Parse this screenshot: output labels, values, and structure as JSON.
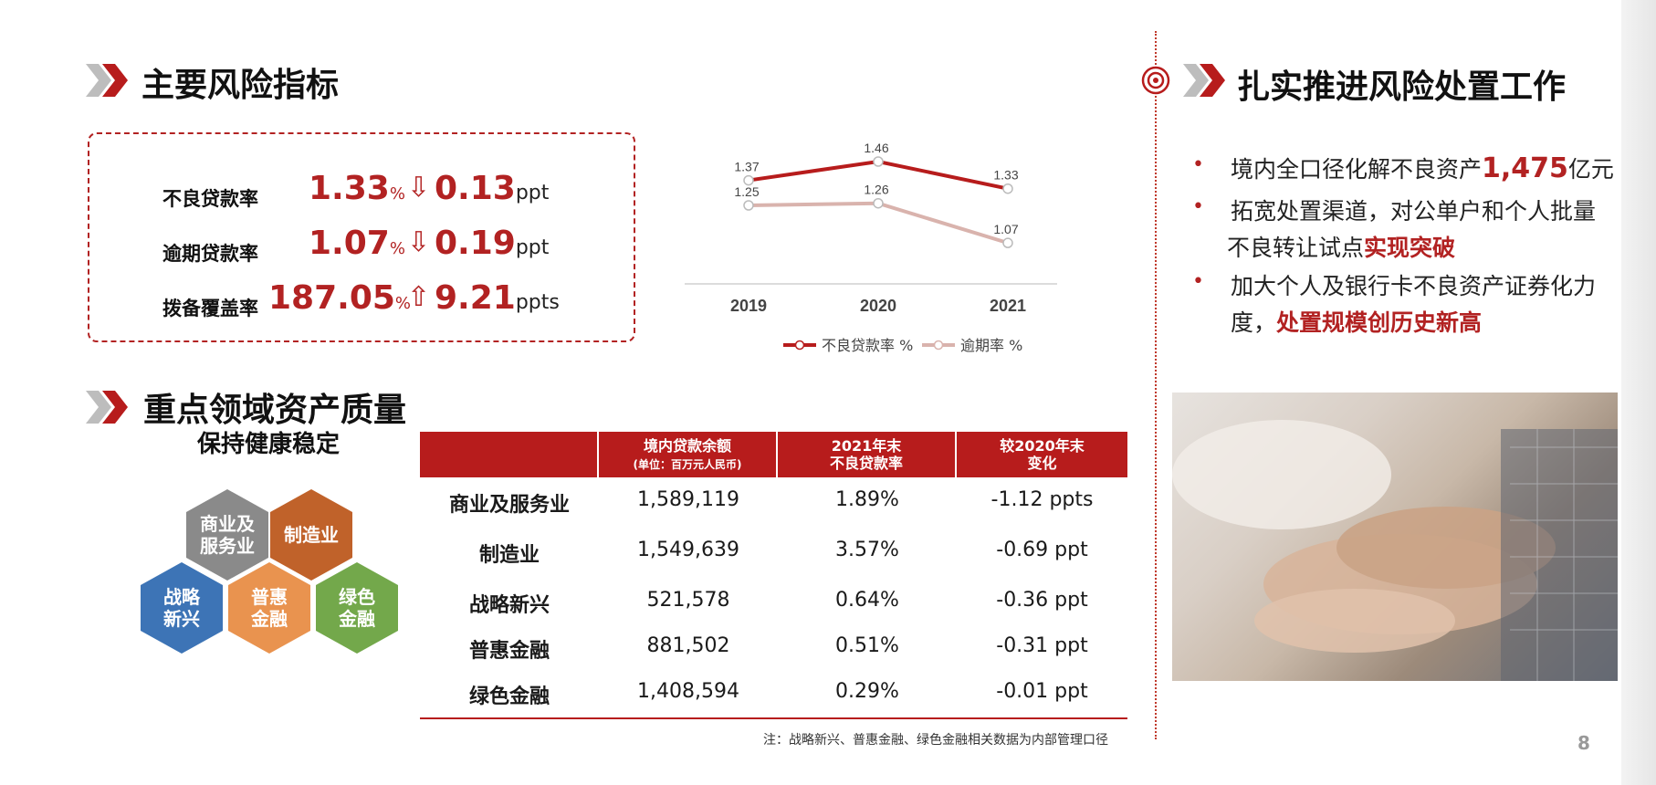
{
  "left": {
    "section1_title": "主要风险指标",
    "kpis": [
      {
        "label": "不良贷款率",
        "value": "1.33",
        "unit": "%",
        "arrow": "⇩",
        "delta": "0.13",
        "delta_unit": "ppt"
      },
      {
        "label": "逾期贷款率",
        "value": "1.07",
        "unit": "%",
        "arrow": "⇩",
        "delta": "0.19",
        "delta_unit": "ppt"
      },
      {
        "label": "拨备覆盖率",
        "value": "187.05",
        "unit": "%",
        "arrow": "⇧",
        "delta": "9.21",
        "delta_unit": "ppts"
      }
    ],
    "section2_title": "重点领域资产质量",
    "section2_subtitle": "保持健康稳定",
    "hexagons": [
      {
        "label": "商业及服务业",
        "color": "#8a8a8a"
      },
      {
        "label": "制造业",
        "color": "#c0622a"
      },
      {
        "label": "战略新兴",
        "color": "#3d74b6"
      },
      {
        "label": "普惠金融",
        "color": "#e9934f"
      },
      {
        "label": "绿色金融",
        "color": "#73a84b"
      }
    ]
  },
  "chart_data": {
    "type": "line",
    "x": [
      "2019",
      "2020",
      "2021"
    ],
    "series": [
      {
        "name": "不良贷款率 %",
        "values": [
          1.37,
          1.46,
          1.33
        ],
        "color": "#b71c1c"
      },
      {
        "name": "逾期率 %",
        "values": [
          1.25,
          1.26,
          1.07
        ],
        "color": "#d9b3ad"
      }
    ],
    "data_labels": [
      [
        "1.37",
        "1.46",
        "1.33"
      ],
      [
        "1.25",
        "1.26",
        "1.07"
      ]
    ],
    "legend": "bottom"
  },
  "table": {
    "headers": [
      {
        "line1": "",
        "line2": ""
      },
      {
        "line1": "境内贷款余额",
        "line2": "(单位：百万元人民币)"
      },
      {
        "line1": "2021年末",
        "line2": "不良贷款率"
      },
      {
        "line1": "较2020年末",
        "line2": "变化"
      }
    ],
    "rows": [
      [
        "商业及服务业",
        "1,589,119",
        "1.89%",
        "-1.12 ppts"
      ],
      [
        "制造业",
        "1,549,639",
        "3.57%",
        "-0.69 ppt"
      ],
      [
        "战略新兴",
        "521,578",
        "0.64%",
        "-0.36 ppt"
      ],
      [
        "普惠金融",
        "881,502",
        "0.51%",
        "-0.31 ppt"
      ],
      [
        "绿色金融",
        "1,408,594",
        "0.29%",
        "-0.01 ppt"
      ]
    ],
    "note": "注：战略新兴、普惠金融、绿色金融相关数据为内部管理口径"
  },
  "right": {
    "title": "扎实推进风险处置工作",
    "bullets": [
      {
        "pre": "境内全口径化解不良资产",
        "hl": "1,475",
        "post": "亿元"
      },
      {
        "line1": "拓宽处置渠道，对公单户和个人批量",
        "pre": "不良转让试点",
        "hl": "实现突破"
      },
      {
        "line1": "加大个人及银行卡不良资产证券化力",
        "pre": "度，",
        "hl": "处置规模创历史新高"
      }
    ]
  },
  "page_number": "8",
  "colors": {
    "accent": "#b71c1c",
    "chevron_grey": "#bdbdbd"
  }
}
